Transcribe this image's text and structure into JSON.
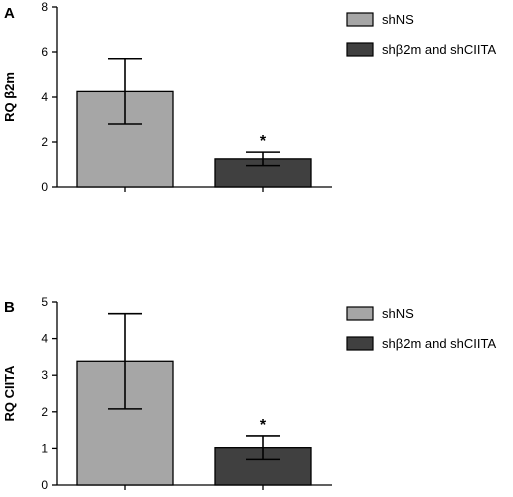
{
  "chart_data": [
    {
      "type": "bar",
      "panel_label": "A",
      "categories": [
        "shNS",
        "shβ2m and shCIITA"
      ],
      "values": [
        4.25,
        1.25
      ],
      "errors": [
        1.45,
        0.3
      ],
      "colors": [
        "#a6a6a6",
        "#404040"
      ],
      "ylabel": "RQ β2m",
      "ylim": [
        0,
        8
      ],
      "yticks": [
        "0",
        "2",
        "4",
        "6",
        "8"
      ],
      "annotations": [
        "",
        "*"
      ],
      "legend": [
        "shNS",
        "shβ2m and shCIITA"
      ],
      "legend_position": "top-right",
      "grid": false
    },
    {
      "type": "bar",
      "panel_label": "B",
      "categories": [
        "shNS",
        "shβ2m and shCIITA"
      ],
      "values": [
        3.38,
        1.02
      ],
      "errors": [
        1.3,
        0.32
      ],
      "colors": [
        "#a6a6a6",
        "#404040"
      ],
      "ylabel": "RQ CIITA",
      "ylim": [
        0,
        5
      ],
      "yticks": [
        "0",
        "1",
        "2",
        "3",
        "4",
        "5"
      ],
      "annotations": [
        "",
        "*"
      ],
      "legend": [
        "shNS",
        "shβ2m and shCIITA"
      ],
      "legend_position": "top-right",
      "grid": false
    }
  ]
}
